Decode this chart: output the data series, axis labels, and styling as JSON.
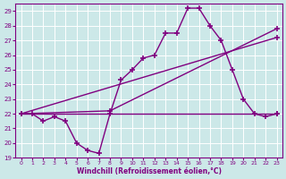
{
  "xlabel": "Windchill (Refroidissement éolien,°C)",
  "background_color": "#cce8e8",
  "line_color": "#800080",
  "xlim": [
    -0.5,
    23.5
  ],
  "ylim": [
    19,
    29.5
  ],
  "yticks": [
    19,
    20,
    21,
    22,
    23,
    24,
    25,
    26,
    27,
    28,
    29
  ],
  "xticks": [
    0,
    1,
    2,
    3,
    4,
    5,
    6,
    7,
    8,
    9,
    10,
    11,
    12,
    13,
    14,
    15,
    16,
    17,
    18,
    19,
    20,
    21,
    22,
    23
  ],
  "series1_x": [
    0,
    1,
    2,
    3,
    4,
    5,
    6,
    7,
    8,
    9,
    10,
    11,
    12,
    13,
    14,
    15,
    16,
    17,
    18,
    19,
    20,
    21,
    22,
    23
  ],
  "series1_y": [
    22.0,
    22.0,
    21.5,
    21.8,
    21.5,
    20.0,
    19.5,
    19.3,
    22.0,
    24.3,
    25.0,
    25.8,
    26.0,
    27.5,
    27.5,
    29.2,
    29.2,
    28.0,
    27.0,
    25.0,
    23.0,
    22.0,
    21.8,
    22.0
  ],
  "series2_x": [
    0,
    23
  ],
  "series2_y": [
    22.0,
    22.0
  ],
  "series3_x": [
    0,
    23
  ],
  "series3_y": [
    22.0,
    27.2
  ],
  "series4_x": [
    0,
    8,
    23
  ],
  "series4_y": [
    22.0,
    22.2,
    27.8
  ]
}
